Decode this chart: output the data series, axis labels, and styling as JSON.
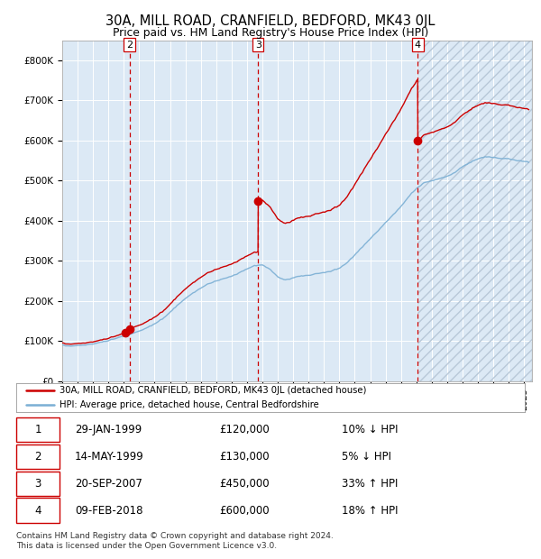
{
  "title": "30A, MILL ROAD, CRANFIELD, BEDFORD, MK43 0JL",
  "subtitle": "Price paid vs. HM Land Registry's House Price Index (HPI)",
  "ylim": [
    0,
    850000
  ],
  "yticks": [
    0,
    100000,
    200000,
    300000,
    400000,
    500000,
    600000,
    700000,
    800000
  ],
  "ytick_labels": [
    "£0",
    "£100K",
    "£200K",
    "£300K",
    "£400K",
    "£500K",
    "£600K",
    "£700K",
    "£800K"
  ],
  "xlim_start": 1995.0,
  "xlim_end": 2025.5,
  "plot_bg_color": "#dce9f5",
  "red_line_color": "#cc0000",
  "blue_line_color": "#7bafd4",
  "sale_points": [
    {
      "date_num": 1999.08,
      "price": 120000,
      "label": "1"
    },
    {
      "date_num": 1999.37,
      "price": 130000,
      "label": "2"
    },
    {
      "date_num": 2007.72,
      "price": 450000,
      "label": "3"
    },
    {
      "date_num": 2018.1,
      "price": 600000,
      "label": "4"
    }
  ],
  "vline_dates": [
    1999.37,
    2007.72,
    2018.1
  ],
  "vline_labels": [
    "2",
    "3",
    "4"
  ],
  "table_data": [
    [
      "1",
      "29-JAN-1999",
      "£120,000",
      "10% ↓ HPI"
    ],
    [
      "2",
      "14-MAY-1999",
      "£130,000",
      "5% ↓ HPI"
    ],
    [
      "3",
      "20-SEP-2007",
      "£450,000",
      "33% ↑ HPI"
    ],
    [
      "4",
      "09-FEB-2018",
      "£600,000",
      "18% ↑ HPI"
    ]
  ],
  "legend_entries": [
    "30A, MILL ROAD, CRANFIELD, BEDFORD, MK43 0JL (detached house)",
    "HPI: Average price, detached house, Central Bedfordshire"
  ],
  "footer_text": "Contains HM Land Registry data © Crown copyright and database right 2024.\nThis data is licensed under the Open Government Licence v3.0.",
  "last_sale_date": 2018.1
}
